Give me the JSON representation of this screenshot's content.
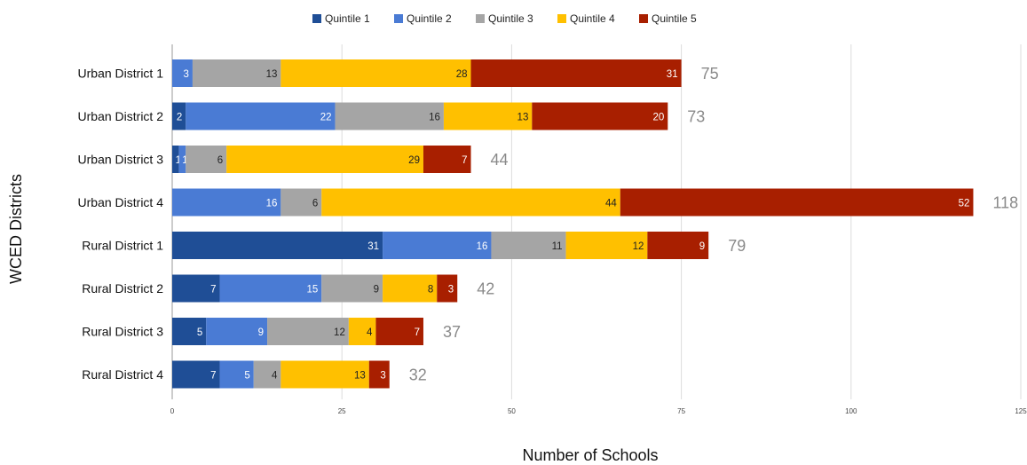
{
  "chart_data": {
    "type": "bar",
    "orientation": "horizontal",
    "stacked": true,
    "title": "",
    "xlabel": "Number of Schools",
    "ylabel": "WCED Districts",
    "xlim": [
      0,
      125
    ],
    "xticks": [
      0,
      25,
      50,
      75,
      100,
      125
    ],
    "grid": true,
    "legend_position": "top",
    "categories": [
      "Urban District 1",
      "Urban District 2",
      "Urban District 3",
      "Urban District 4",
      "Rural District 1",
      "Rural District 2",
      "Rural District 3",
      "Rural District 4"
    ],
    "series": [
      {
        "name": "Quintile 1",
        "color": "#1f4e96",
        "values": [
          0,
          2,
          1,
          0,
          31,
          7,
          5,
          7
        ]
      },
      {
        "name": "Quintile 2",
        "color": "#4a7bd4",
        "values": [
          3,
          22,
          1,
          16,
          16,
          15,
          9,
          5
        ]
      },
      {
        "name": "Quintile 3",
        "color": "#a5a5a5",
        "values": [
          13,
          16,
          6,
          6,
          11,
          9,
          12,
          4
        ]
      },
      {
        "name": "Quintile 4",
        "color": "#ffc000",
        "values": [
          28,
          13,
          29,
          44,
          12,
          8,
          4,
          13
        ]
      },
      {
        "name": "Quintile 5",
        "color": "#a81f00",
        "values": [
          31,
          20,
          7,
          52,
          9,
          3,
          7,
          3
        ]
      }
    ],
    "totals": [
      75,
      73,
      44,
      118,
      79,
      42,
      37,
      32
    ]
  }
}
